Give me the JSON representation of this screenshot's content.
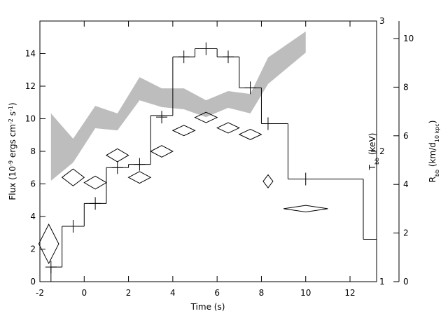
{
  "chart_data": {
    "type": "step",
    "xlabel": "Time (s)",
    "ylabel": [
      {
        "text": "Flux (10"
      },
      {
        "text": "-9",
        "sup": true
      },
      {
        "text": " ergs cm"
      },
      {
        "text": "-2",
        "sup": true
      },
      {
        "text": " s"
      },
      {
        "text": "-1",
        "sup": true
      },
      {
        "text": ")"
      }
    ],
    "y2label": [
      {
        "text": "T"
      },
      {
        "text": "bb",
        "sub": true
      },
      {
        "text": " (keV)"
      }
    ],
    "y3label": [
      {
        "text": "R"
      },
      {
        "text": "bb",
        "sub": true
      },
      {
        "text": " (km/d"
      },
      {
        "text": "10 kpc",
        "sub": true
      },
      {
        "text": ")"
      }
    ],
    "xlim": [
      -2,
      13.2
    ],
    "xticks": [
      -2,
      0,
      2,
      4,
      6,
      8,
      10,
      12
    ],
    "ylim": [
      0,
      16
    ],
    "yticks": [
      0,
      2,
      4,
      6,
      8,
      10,
      12,
      14
    ],
    "y2lim": [
      1,
      3
    ],
    "y2ticks": [
      1,
      2,
      3
    ],
    "y3lim": [
      0,
      10.72
    ],
    "y3ticks": [
      0,
      2,
      4,
      6,
      8,
      10
    ],
    "grid": false,
    "flux_hist": {
      "color": "#000000",
      "bins": [
        -1.5,
        -1,
        0,
        1,
        2,
        3,
        4,
        5,
        6,
        7,
        8,
        9.2,
        12.6,
        13.2
      ],
      "values": [
        0.9,
        3.4,
        4.8,
        7.0,
        7.2,
        10.2,
        13.8,
        14.3,
        13.8,
        11.9,
        9.7,
        6.3,
        2.6
      ]
    },
    "flux_points": {
      "color": "#000000",
      "x": [
        -1.5,
        -0.5,
        0.5,
        1.5,
        2.5,
        3.5,
        4.5,
        5.5,
        6.5,
        7.5,
        8.3,
        10
      ],
      "values": [
        0.9,
        3.4,
        4.8,
        7.0,
        7.2,
        10.1,
        13.8,
        14.3,
        13.8,
        11.9,
        9.7,
        6.3
      ]
    },
    "temperature": {
      "axis": "y2",
      "color": "#000000",
      "x": [
        -1.6,
        -0.5,
        0.5,
        1.5,
        2.5,
        3.5,
        4.5,
        5.5,
        6.5,
        7.5,
        8.3,
        10
      ],
      "xerr": [
        0.45,
        0.5,
        0.5,
        0.5,
        0.5,
        0.5,
        0.5,
        0.5,
        0.5,
        0.5,
        0.22,
        1.0
      ],
      "values": [
        1.29,
        1.8,
        1.76,
        1.97,
        1.8,
        2.0,
        2.16,
        2.26,
        2.18,
        2.13,
        1.77,
        1.56
      ],
      "terr": [
        0.15,
        0.065,
        0.05,
        0.05,
        0.045,
        0.045,
        0.04,
        0.04,
        0.04,
        0.04,
        0.05,
        0.025
      ]
    },
    "radius": {
      "axis": "y3",
      "color": "#bdbdbd",
      "x": [
        -1.5,
        -0.5,
        0.5,
        1.5,
        2.5,
        3.5,
        4.5,
        5.5,
        6.5,
        7.5,
        8.3,
        10
      ],
      "upper": [
        6.92,
        5.88,
        7.23,
        6.92,
        8.41,
        7.95,
        7.95,
        7.46,
        7.84,
        7.72,
        9.22,
        10.29
      ],
      "lower": [
        4.15,
        4.9,
        6.31,
        6.22,
        7.46,
        7.18,
        7.09,
        6.77,
        7.15,
        6.92,
        8.13,
        9.42
      ]
    }
  }
}
